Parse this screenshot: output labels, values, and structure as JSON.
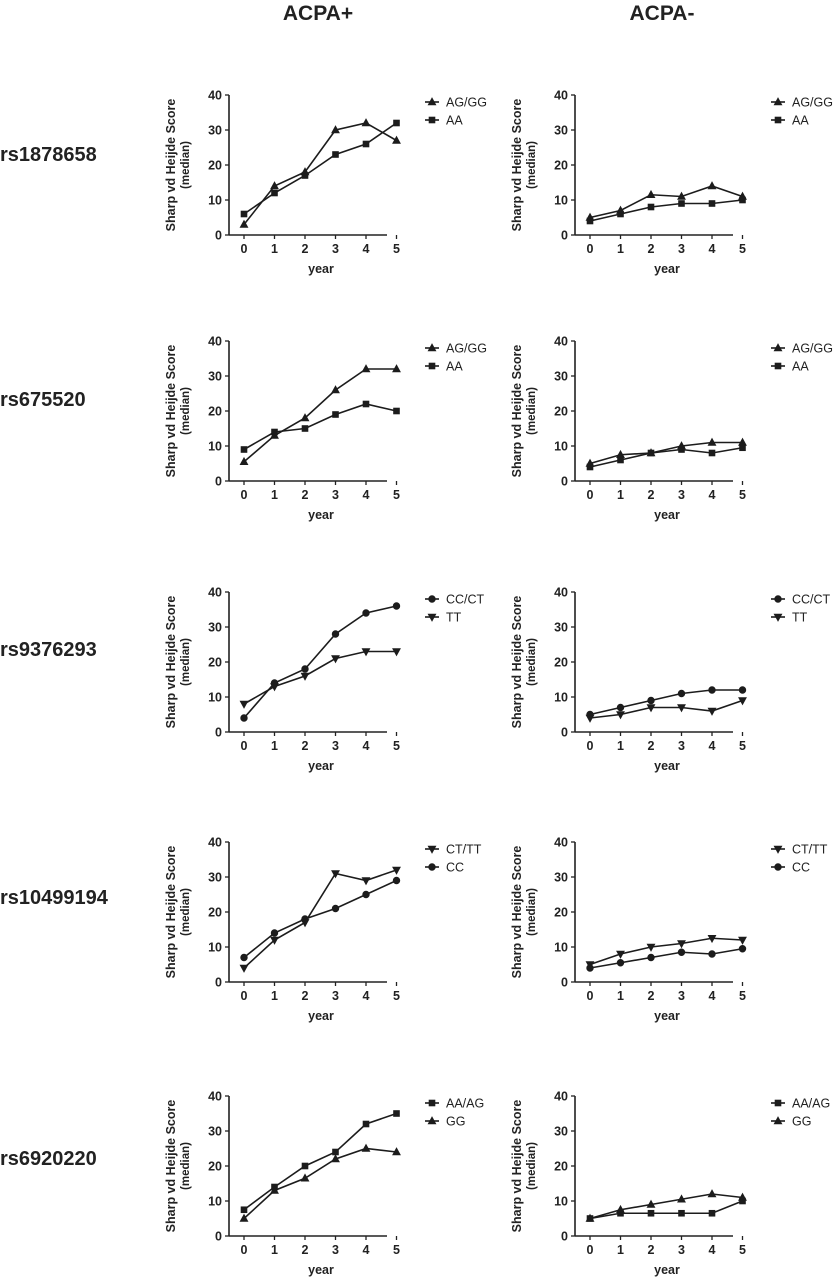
{
  "columns": [
    "ACPA+",
    "ACPA-"
  ],
  "rows": [
    "rs1878658",
    "rs675520",
    "rs9376293",
    "rs10499194",
    "rs6920220"
  ],
  "chart_data": [
    {
      "type": "line",
      "panel": "ACPA+ rs1878658",
      "x": [
        0,
        1,
        2,
        3,
        4,
        5
      ],
      "xlabel": "year",
      "ylabel": "Sharp vd Heijde Score (median)",
      "ylim": [
        0,
        40
      ],
      "yticks": [
        0,
        10,
        20,
        30,
        40
      ],
      "legend": "top-right",
      "series": [
        {
          "name": "AG/GG",
          "marker": "triangle-up",
          "values": [
            3,
            14,
            18,
            30,
            32,
            27
          ]
        },
        {
          "name": "AA",
          "marker": "square",
          "values": [
            6,
            12,
            17,
            23,
            26,
            32
          ]
        }
      ]
    },
    {
      "type": "line",
      "panel": "ACPA- rs1878658",
      "x": [
        0,
        1,
        2,
        3,
        4,
        5
      ],
      "xlabel": "year",
      "ylabel": "Sharp vd Heijde Score (median)",
      "ylim": [
        0,
        40
      ],
      "yticks": [
        0,
        10,
        20,
        30,
        40
      ],
      "legend": "top-right",
      "series": [
        {
          "name": "AG/GG",
          "marker": "triangle-up",
          "values": [
            5,
            7,
            11.5,
            11,
            14,
            11
          ]
        },
        {
          "name": "AA",
          "marker": "square",
          "values": [
            4,
            6,
            8,
            9,
            9,
            10
          ]
        }
      ]
    },
    {
      "type": "line",
      "panel": "ACPA+ rs675520",
      "x": [
        0,
        1,
        2,
        3,
        4,
        5
      ],
      "xlabel": "year",
      "ylabel": "Sharp vd Heijde Score (median)",
      "ylim": [
        0,
        40
      ],
      "yticks": [
        0,
        10,
        20,
        30,
        40
      ],
      "legend": "top-right",
      "series": [
        {
          "name": "AG/GG",
          "marker": "triangle-up",
          "values": [
            5.5,
            13,
            18,
            26,
            32,
            32
          ]
        },
        {
          "name": "AA",
          "marker": "square",
          "values": [
            9,
            14,
            15,
            19,
            22,
            20
          ]
        }
      ]
    },
    {
      "type": "line",
      "panel": "ACPA- rs675520",
      "x": [
        0,
        1,
        2,
        3,
        4,
        5
      ],
      "xlabel": "year",
      "ylabel": "Sharp vd Heijde Score (median)",
      "ylim": [
        0,
        40
      ],
      "yticks": [
        0,
        10,
        20,
        30,
        40
      ],
      "legend": "top-right",
      "series": [
        {
          "name": "AG/GG",
          "marker": "triangle-up",
          "values": [
            5,
            7.5,
            8,
            10,
            11,
            11
          ]
        },
        {
          "name": "AA",
          "marker": "square",
          "values": [
            4,
            6,
            8,
            9,
            8,
            9.5
          ]
        }
      ]
    },
    {
      "type": "line",
      "panel": "ACPA+ rs9376293",
      "x": [
        0,
        1,
        2,
        3,
        4,
        5
      ],
      "xlabel": "year",
      "ylabel": "Sharp vd Heijde Score (median)",
      "ylim": [
        0,
        40
      ],
      "yticks": [
        0,
        10,
        20,
        30,
        40
      ],
      "legend": "top-right",
      "series": [
        {
          "name": "CC/CT",
          "marker": "circle",
          "values": [
            4,
            14,
            18,
            28,
            34,
            36
          ]
        },
        {
          "name": "TT",
          "marker": "triangle-down",
          "values": [
            8,
            13,
            16,
            21,
            23,
            23
          ]
        }
      ]
    },
    {
      "type": "line",
      "panel": "ACPA- rs9376293",
      "x": [
        0,
        1,
        2,
        3,
        4,
        5
      ],
      "xlabel": "year",
      "ylabel": "Sharp vd Heijde Score (median)",
      "ylim": [
        0,
        40
      ],
      "yticks": [
        0,
        10,
        20,
        30,
        40
      ],
      "legend": "top-right",
      "series": [
        {
          "name": "CC/CT",
          "marker": "circle",
          "values": [
            5,
            7,
            9,
            11,
            12,
            12
          ]
        },
        {
          "name": "TT",
          "marker": "triangle-down",
          "values": [
            4,
            5,
            7,
            7,
            6,
            9
          ]
        }
      ]
    },
    {
      "type": "line",
      "panel": "ACPA+ rs10499194",
      "x": [
        0,
        1,
        2,
        3,
        4,
        5
      ],
      "xlabel": "year",
      "ylabel": "Sharp vd Heijde Score (median)",
      "ylim": [
        0,
        40
      ],
      "yticks": [
        0,
        10,
        20,
        30,
        40
      ],
      "legend": "top-right",
      "series": [
        {
          "name": "CT/TT",
          "marker": "triangle-down",
          "values": [
            4,
            12,
            17,
            31,
            29,
            32
          ]
        },
        {
          "name": "CC",
          "marker": "circle",
          "values": [
            7,
            14,
            18,
            21,
            25,
            29
          ]
        }
      ]
    },
    {
      "type": "line",
      "panel": "ACPA- rs10499194",
      "x": [
        0,
        1,
        2,
        3,
        4,
        5
      ],
      "xlabel": "year",
      "ylabel": "Sharp vd Heijde Score (median)",
      "ylim": [
        0,
        40
      ],
      "yticks": [
        0,
        10,
        20,
        30,
        40
      ],
      "legend": "top-right",
      "series": [
        {
          "name": "CT/TT",
          "marker": "triangle-down",
          "values": [
            5,
            8,
            10,
            11,
            12.5,
            12
          ]
        },
        {
          "name": "CC",
          "marker": "circle",
          "values": [
            4,
            5.5,
            7,
            8.5,
            8,
            9.5
          ]
        }
      ]
    },
    {
      "type": "line",
      "panel": "ACPA+ rs6920220",
      "x": [
        0,
        1,
        2,
        3,
        4,
        5
      ],
      "xlabel": "year",
      "ylabel": "Sharp vd Heijde Score (median)",
      "ylim": [
        0,
        40
      ],
      "yticks": [
        0,
        10,
        20,
        30,
        40
      ],
      "legend": "top-right",
      "series": [
        {
          "name": "AA/AG",
          "marker": "square",
          "values": [
            7.5,
            14,
            20,
            24,
            32,
            35
          ]
        },
        {
          "name": "GG",
          "marker": "triangle-up",
          "values": [
            5,
            13,
            16.5,
            22,
            25,
            24
          ]
        }
      ]
    },
    {
      "type": "line",
      "panel": "ACPA- rs6920220",
      "x": [
        0,
        1,
        2,
        3,
        4,
        5
      ],
      "xlabel": "year",
      "ylabel": "Sharp vd Heijde Score (median)",
      "ylim": [
        0,
        40
      ],
      "yticks": [
        0,
        10,
        20,
        30,
        40
      ],
      "legend": "top-right",
      "series": [
        {
          "name": "AA/AG",
          "marker": "square",
          "values": [
            5,
            6.5,
            6.5,
            6.5,
            6.5,
            10
          ]
        },
        {
          "name": "GG",
          "marker": "triangle-up",
          "values": [
            5,
            7.5,
            9,
            10.5,
            12,
            11
          ]
        }
      ]
    }
  ]
}
